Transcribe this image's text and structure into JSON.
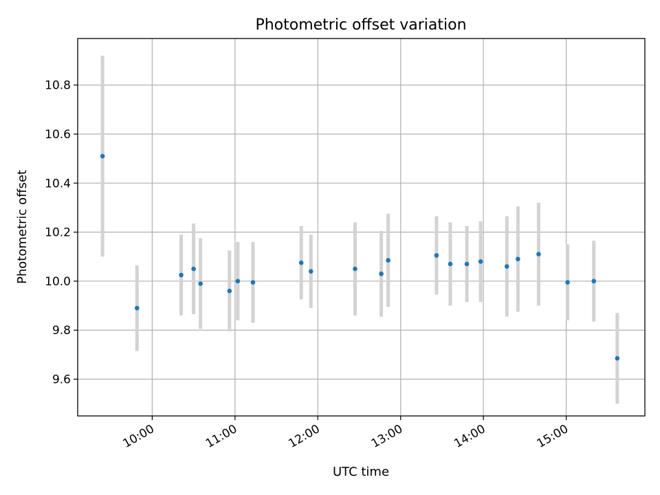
{
  "chart_data": {
    "type": "scatter",
    "title": "Photometric offset variation",
    "xlabel": "UTC time",
    "ylabel": "Photometric offset",
    "grid": true,
    "x_tick_labels": [
      "10:00",
      "11:00",
      "12:00",
      "13:00",
      "14:00",
      "15:00"
    ],
    "y_tick_labels": [
      "9.6",
      "9.8",
      "10.0",
      "10.2",
      "10.4",
      "10.6",
      "10.8"
    ],
    "y_ticks": [
      9.6,
      9.8,
      10.0,
      10.2,
      10.4,
      10.6,
      10.8
    ],
    "xlim": [
      "09:06",
      "15:57"
    ],
    "ylim": [
      9.45,
      10.99
    ],
    "colors": {
      "point": "#1f77b4",
      "errorbar": "#d3d3d3",
      "grid": "#b0b0b0"
    },
    "points": [
      {
        "t": "09:24",
        "y": 10.51,
        "err": 0.41
      },
      {
        "t": "09:49",
        "y": 9.89,
        "err": 0.175
      },
      {
        "t": "10:21",
        "y": 10.025,
        "err": 0.165
      },
      {
        "t": "10:30",
        "y": 10.05,
        "err": 0.185
      },
      {
        "t": "10:35",
        "y": 9.99,
        "err": 0.185
      },
      {
        "t": "10:56",
        "y": 9.96,
        "err": 0.165
      },
      {
        "t": "11:02",
        "y": 10.0,
        "err": 0.16
      },
      {
        "t": "11:13",
        "y": 9.995,
        "err": 0.165
      },
      {
        "t": "11:48",
        "y": 10.075,
        "err": 0.15
      },
      {
        "t": "11:55",
        "y": 10.04,
        "err": 0.15
      },
      {
        "t": "12:27",
        "y": 10.05,
        "err": 0.19
      },
      {
        "t": "12:46",
        "y": 10.03,
        "err": 0.175
      },
      {
        "t": "12:51",
        "y": 10.085,
        "err": 0.19
      },
      {
        "t": "13:26",
        "y": 10.105,
        "err": 0.16
      },
      {
        "t": "13:36",
        "y": 10.07,
        "err": 0.17
      },
      {
        "t": "13:48",
        "y": 10.07,
        "err": 0.155
      },
      {
        "t": "13:58",
        "y": 10.08,
        "err": 0.165
      },
      {
        "t": "14:17",
        "y": 10.06,
        "err": 0.205
      },
      {
        "t": "14:25",
        "y": 10.09,
        "err": 0.215
      },
      {
        "t": "14:40",
        "y": 10.11,
        "err": 0.21
      },
      {
        "t": "15:01",
        "y": 9.995,
        "err": 0.155
      },
      {
        "t": "15:20",
        "y": 10.0,
        "err": 0.165
      },
      {
        "t": "15:37",
        "y": 9.685,
        "err": 0.185
      }
    ]
  }
}
